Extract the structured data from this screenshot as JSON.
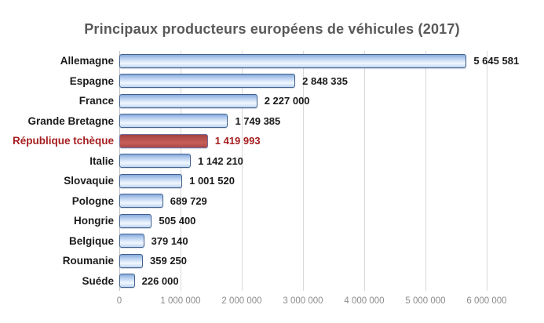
{
  "title": "Principaux producteurs européens de véhicules (2017)",
  "colors": {
    "title_text": "#595959",
    "bar_fill": "#aec8ec",
    "bar_border": "#41618e",
    "highlight_fill": "#bb5450",
    "highlight_border": "#716d9b",
    "highlight_text": "#a61e20",
    "category_text": "#1a1a1a",
    "axis_text": "#8c8c8c",
    "gridline": "#d9d9d9"
  },
  "chart_data": {
    "type": "bar",
    "orientation": "horizontal",
    "title": "Principaux producteurs européens de véhicules (2017)",
    "categories": [
      "Allemagne",
      "Espagne",
      "France",
      "Grande Bretagne",
      "République tchèque",
      "Italie",
      "Slovaquie",
      "Pologne",
      "Hongrie",
      "Belgique",
      "Roumanie",
      "Suéde"
    ],
    "values": [
      5645581,
      2848335,
      2227000,
      1749385,
      1419993,
      1142210,
      1001520,
      689729,
      505400,
      379140,
      359250,
      226000
    ],
    "values_formatted": [
      "5 645 581",
      "2 848 335",
      "2 227 000",
      "1 749 385",
      "1 419 993",
      "1 142 210",
      "1 001 520",
      "689 729",
      "505 400",
      "379 140",
      "359 250",
      "226 000"
    ],
    "highlight_index": 4,
    "xlabel": "",
    "ylabel": "",
    "xlim": [
      0,
      6000000
    ],
    "x_ticks": [
      "0",
      "1 000 000",
      "2 000 000",
      "3 000 000",
      "4 000 000",
      "5 000 000",
      "6 000 000"
    ],
    "grid": true,
    "legend": false
  }
}
